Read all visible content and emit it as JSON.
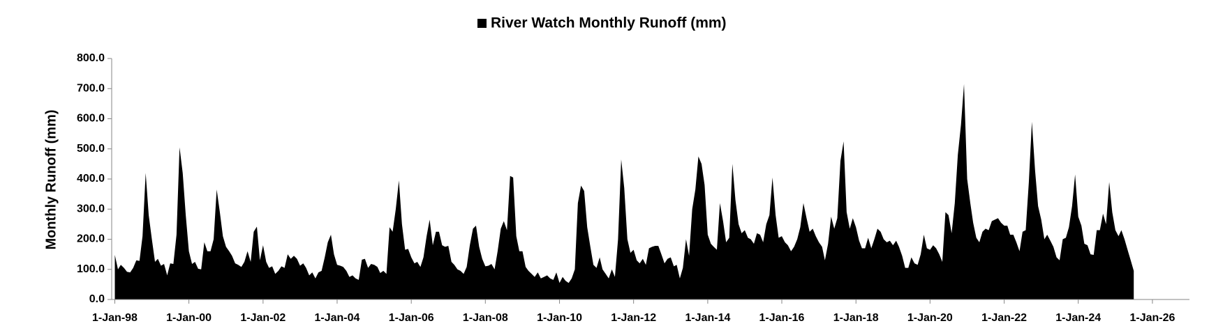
{
  "chart_data": {
    "type": "area",
    "y_label": "Monthly Runoff (mm)",
    "legend": "top",
    "xlim": [
      "1997-12-01",
      "2027-01-01"
    ],
    "xticks": [
      {
        "value": "1998-01-01",
        "label": "1-Jan-98"
      },
      {
        "value": "2000-01-01",
        "label": "1-Jan-00"
      },
      {
        "value": "2002-01-01",
        "label": "1-Jan-02"
      },
      {
        "value": "2004-01-01",
        "label": "1-Jan-04"
      },
      {
        "value": "2006-01-01",
        "label": "1-Jan-06"
      },
      {
        "value": "2008-01-01",
        "label": "1-Jan-08"
      },
      {
        "value": "2010-01-01",
        "label": "1-Jan-10"
      },
      {
        "value": "2012-01-01",
        "label": "1-Jan-12"
      },
      {
        "value": "2014-01-01",
        "label": "1-Jan-14"
      },
      {
        "value": "2016-01-01",
        "label": "1-Jan-16"
      },
      {
        "value": "2018-01-01",
        "label": "1-Jan-18"
      },
      {
        "value": "2020-01-01",
        "label": "1-Jan-20"
      },
      {
        "value": "2022-01-01",
        "label": "1-Jan-22"
      },
      {
        "value": "2024-01-01",
        "label": "1-Jan-24"
      },
      {
        "value": "2026-01-01",
        "label": "1-Jan-26"
      }
    ],
    "ylim": [
      0,
      800
    ],
    "yticks": [
      {
        "value": 0,
        "label": "0.0"
      },
      {
        "value": 100,
        "label": "100.0"
      },
      {
        "value": 200,
        "label": "200.0"
      },
      {
        "value": 300,
        "label": "300.0"
      },
      {
        "value": 400,
        "label": "400.0"
      },
      {
        "value": 500,
        "label": "500.0"
      },
      {
        "value": 600,
        "label": "600.0"
      },
      {
        "value": 700,
        "label": "700.0"
      },
      {
        "value": 800,
        "label": "800.0"
      }
    ],
    "x": [
      "1998-01-01",
      "1998-02-01",
      "1998-03-01",
      "1998-04-01",
      "1998-05-01",
      "1998-06-01",
      "1998-07-01",
      "1998-08-01",
      "1998-09-01",
      "1998-10-01",
      "1998-11-01",
      "1998-12-01",
      "1999-01-01",
      "1999-02-01",
      "1999-03-01",
      "1999-04-01",
      "1999-05-01",
      "1999-06-01",
      "1999-07-01",
      "1999-08-01",
      "1999-09-01",
      "1999-10-01",
      "1999-11-01",
      "1999-12-01",
      "2000-01-01",
      "2000-02-01",
      "2000-03-01",
      "2000-04-01",
      "2000-05-01",
      "2000-06-01",
      "2000-07-01",
      "2000-08-01",
      "2000-09-01",
      "2000-10-01",
      "2000-11-01",
      "2000-12-01",
      "2001-01-01",
      "2001-02-01",
      "2001-03-01",
      "2001-04-01",
      "2001-05-01",
      "2001-06-01",
      "2001-07-01",
      "2001-08-01",
      "2001-09-01",
      "2001-10-01",
      "2001-11-01",
      "2001-12-01",
      "2002-01-01",
      "2002-02-01",
      "2002-03-01",
      "2002-04-01",
      "2002-05-01",
      "2002-06-01",
      "2002-07-01",
      "2002-08-01",
      "2002-09-01",
      "2002-10-01",
      "2002-11-01",
      "2002-12-01",
      "2003-01-01",
      "2003-02-01",
      "2003-03-01",
      "2003-04-01",
      "2003-05-01",
      "2003-06-01",
      "2003-07-01",
      "2003-08-01",
      "2003-09-01",
      "2003-10-01",
      "2003-11-01",
      "2003-12-01",
      "2004-01-01",
      "2004-02-01",
      "2004-03-01",
      "2004-04-01",
      "2004-05-01",
      "2004-06-01",
      "2004-07-01",
      "2004-08-01",
      "2004-09-01",
      "2004-10-01",
      "2004-11-01",
      "2004-12-01",
      "2005-01-01",
      "2005-02-01",
      "2005-03-01",
      "2005-04-01",
      "2005-05-01",
      "2005-06-01",
      "2005-07-01",
      "2005-08-01",
      "2005-09-01",
      "2005-10-01",
      "2005-11-01",
      "2005-12-01",
      "2006-01-01",
      "2006-02-01",
      "2006-03-01",
      "2006-04-01",
      "2006-05-01",
      "2006-06-01",
      "2006-07-01",
      "2006-08-01",
      "2006-09-01",
      "2006-10-01",
      "2006-11-01",
      "2006-12-01",
      "2007-01-01",
      "2007-02-01",
      "2007-03-01",
      "2007-04-01",
      "2007-05-01",
      "2007-06-01",
      "2007-07-01",
      "2007-08-01",
      "2007-09-01",
      "2007-10-01",
      "2007-11-01",
      "2007-12-01",
      "2008-01-01",
      "2008-02-01",
      "2008-03-01",
      "2008-04-01",
      "2008-05-01",
      "2008-06-01",
      "2008-07-01",
      "2008-08-01",
      "2008-09-01",
      "2008-10-01",
      "2008-11-01",
      "2008-12-01",
      "2009-01-01",
      "2009-02-01",
      "2009-03-01",
      "2009-04-01",
      "2009-05-01",
      "2009-06-01",
      "2009-07-01",
      "2009-08-01",
      "2009-09-01",
      "2009-10-01",
      "2009-11-01",
      "2009-12-01",
      "2010-01-01",
      "2010-02-01",
      "2010-03-01",
      "2010-04-01",
      "2010-05-01",
      "2010-06-01",
      "2010-07-01",
      "2010-08-01",
      "2010-09-01",
      "2010-10-01",
      "2010-11-01",
      "2010-12-01",
      "2011-01-01",
      "2011-02-01",
      "2011-03-01",
      "2011-04-01",
      "2011-05-01",
      "2011-06-01",
      "2011-07-01",
      "2011-08-01",
      "2011-09-01",
      "2011-10-01",
      "2011-11-01",
      "2011-12-01",
      "2012-01-01",
      "2012-02-01",
      "2012-03-01",
      "2012-04-01",
      "2012-05-01",
      "2012-06-01",
      "2012-07-01",
      "2012-08-01",
      "2012-09-01",
      "2012-10-01",
      "2012-11-01",
      "2012-12-01",
      "2013-01-01",
      "2013-02-01",
      "2013-03-01",
      "2013-04-01",
      "2013-05-01",
      "2013-06-01",
      "2013-07-01",
      "2013-08-01",
      "2013-09-01",
      "2013-10-01",
      "2013-11-01",
      "2013-12-01",
      "2014-01-01",
      "2014-02-01",
      "2014-03-01",
      "2014-04-01",
      "2014-05-01",
      "2014-06-01",
      "2014-07-01",
      "2014-08-01",
      "2014-09-01",
      "2014-10-01",
      "2014-11-01",
      "2014-12-01",
      "2015-01-01",
      "2015-02-01",
      "2015-03-01",
      "2015-04-01",
      "2015-05-01",
      "2015-06-01",
      "2015-07-01",
      "2015-08-01",
      "2015-09-01",
      "2015-10-01",
      "2015-11-01",
      "2015-12-01",
      "2016-01-01",
      "2016-02-01",
      "2016-03-01",
      "2016-04-01",
      "2016-05-01",
      "2016-06-01",
      "2016-07-01",
      "2016-08-01",
      "2016-09-01",
      "2016-10-01",
      "2016-11-01",
      "2016-12-01",
      "2017-01-01",
      "2017-02-01",
      "2017-03-01",
      "2017-04-01",
      "2017-05-01",
      "2017-06-01",
      "2017-07-01",
      "2017-08-01",
      "2017-09-01",
      "2017-10-01",
      "2017-11-01",
      "2017-12-01",
      "2018-01-01",
      "2018-02-01",
      "2018-03-01",
      "2018-04-01",
      "2018-05-01",
      "2018-06-01",
      "2018-07-01",
      "2018-08-01",
      "2018-09-01",
      "2018-10-01",
      "2018-11-01",
      "2018-12-01",
      "2019-01-01",
      "2019-02-01",
      "2019-03-01",
      "2019-04-01",
      "2019-05-01",
      "2019-06-01",
      "2019-07-01",
      "2019-08-01",
      "2019-09-01",
      "2019-10-01",
      "2019-11-01",
      "2019-12-01",
      "2020-01-01",
      "2020-02-01",
      "2020-03-01",
      "2020-04-01",
      "2020-05-01",
      "2020-06-01",
      "2020-07-01",
      "2020-08-01",
      "2020-09-01",
      "2020-10-01",
      "2020-11-01",
      "2020-12-01",
      "2021-01-01",
      "2021-02-01",
      "2021-03-01",
      "2021-04-01",
      "2021-05-01",
      "2021-06-01",
      "2021-07-01",
      "2021-08-01",
      "2021-09-01",
      "2021-10-01",
      "2021-11-01",
      "2021-12-01",
      "2022-01-01",
      "2022-02-01",
      "2022-03-01",
      "2022-04-01",
      "2022-05-01",
      "2022-06-01",
      "2022-07-01",
      "2022-08-01",
      "2022-09-01",
      "2022-10-01",
      "2022-11-01",
      "2022-12-01",
      "2023-01-01",
      "2023-02-01",
      "2023-03-01",
      "2023-04-01",
      "2023-05-01",
      "2023-06-01",
      "2023-07-01",
      "2023-08-01",
      "2023-09-01",
      "2023-10-01",
      "2023-11-01",
      "2023-12-01",
      "2024-01-01",
      "2024-02-01",
      "2024-03-01",
      "2024-04-01",
      "2024-05-01",
      "2024-06-01",
      "2024-07-01",
      "2024-08-01",
      "2024-09-01",
      "2024-10-01",
      "2024-11-01",
      "2024-12-01",
      "2025-01-01",
      "2025-02-01",
      "2025-03-01",
      "2025-04-01",
      "2025-05-01",
      "2025-06-01",
      "2025-07-01"
    ],
    "series": [
      {
        "name": "River Watch Monthly Runoff (mm)",
        "color": "#000000",
        "values": [
          148,
          100,
          115,
          105,
          92,
          90,
          105,
          130,
          128,
          210,
          420,
          280,
          200,
          125,
          135,
          112,
          118,
          80,
          120,
          118,
          215,
          505,
          420,
          280,
          160,
          118,
          125,
          102,
          100,
          190,
          160,
          160,
          200,
          365,
          290,
          210,
          175,
          160,
          145,
          120,
          115,
          108,
          125,
          160,
          125,
          225,
          242,
          130,
          180,
          125,
          105,
          110,
          85,
          95,
          110,
          105,
          150,
          135,
          145,
          135,
          112,
          120,
          105,
          80,
          90,
          70,
          90,
          95,
          140,
          190,
          215,
          150,
          115,
          112,
          108,
          95,
          75,
          80,
          70,
          65,
          132,
          135,
          105,
          118,
          115,
          108,
          88,
          95,
          85,
          240,
          225,
          300,
          395,
          250,
          165,
          168,
          140,
          120,
          125,
          108,
          140,
          210,
          265,
          180,
          225,
          225,
          180,
          175,
          178,
          125,
          115,
          100,
          95,
          85,
          108,
          180,
          235,
          245,
          175,
          135,
          110,
          112,
          118,
          100,
          160,
          235,
          260,
          230,
          410,
          405,
          210,
          160,
          160,
          108,
          95,
          85,
          75,
          90,
          70,
          75,
          80,
          70,
          65,
          90,
          55,
          75,
          62,
          55,
          70,
          100,
          320,
          378,
          360,
          240,
          175,
          115,
          105,
          140,
          100,
          85,
          70,
          100,
          75,
          200,
          465,
          370,
          200,
          155,
          165,
          130,
          120,
          135,
          115,
          170,
          175,
          178,
          178,
          150,
          120,
          135,
          140,
          110,
          115,
          70,
          105,
          200,
          145,
          300,
          365,
          475,
          450,
          380,
          215,
          185,
          175,
          165,
          320,
          260,
          190,
          205,
          450,
          330,
          250,
          220,
          230,
          205,
          200,
          185,
          220,
          215,
          190,
          250,
          280,
          405,
          280,
          205,
          210,
          190,
          180,
          160,
          175,
          200,
          240,
          320,
          270,
          225,
          235,
          210,
          190,
          175,
          130,
          185,
          275,
          235,
          270,
          460,
          525,
          290,
          235,
          270,
          240,
          195,
          170,
          170,
          205,
          170,
          200,
          235,
          225,
          200,
          190,
          195,
          180,
          195,
          175,
          145,
          105,
          105,
          140,
          120,
          115,
          150,
          215,
          170,
          165,
          180,
          170,
          150,
          125,
          290,
          280,
          220,
          320,
          480,
          580,
          715,
          400,
          320,
          255,
          205,
          190,
          225,
          235,
          230,
          260,
          265,
          270,
          255,
          245,
          245,
          215,
          215,
          190,
          160,
          225,
          230,
          390,
          590,
          430,
          310,
          265,
          200,
          215,
          195,
          175,
          140,
          130,
          200,
          205,
          240,
          310,
          415,
          275,
          245,
          185,
          180,
          150,
          148,
          230,
          230,
          285,
          250,
          390,
          290,
          230,
          210,
          230,
          200,
          165,
          130,
          95
        ]
      }
    ]
  }
}
